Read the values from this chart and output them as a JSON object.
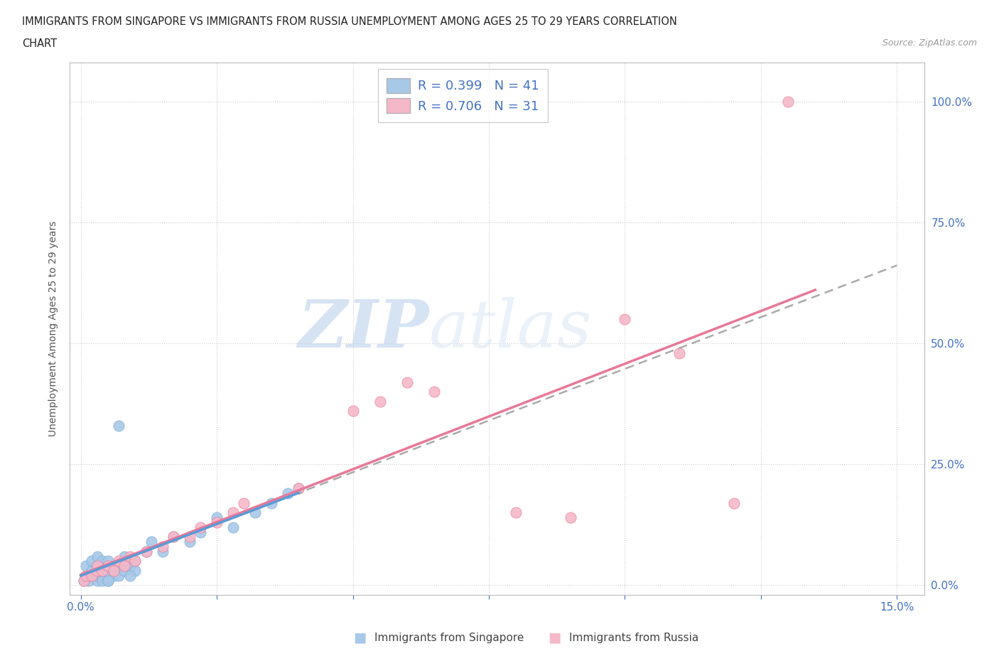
{
  "title_line1": "IMMIGRANTS FROM SINGAPORE VS IMMIGRANTS FROM RUSSIA UNEMPLOYMENT AMONG AGES 25 TO 29 YEARS CORRELATION",
  "title_line2": "CHART",
  "source": "Source: ZipAtlas.com",
  "ylabel": "Unemployment Among Ages 25 to 29 years",
  "xlim": [
    -0.002,
    0.155
  ],
  "ylim": [
    -0.02,
    1.08
  ],
  "xticks": [
    0.0,
    0.025,
    0.05,
    0.075,
    0.1,
    0.125,
    0.15
  ],
  "xticklabels": [
    "0.0%",
    "",
    "",
    "",
    "",
    "",
    "15.0%"
  ],
  "yticks": [
    0.0,
    0.25,
    0.5,
    0.75,
    1.0
  ],
  "yticklabels": [
    "0.0%",
    "25.0%",
    "50.0%",
    "75.0%",
    "100.0%"
  ],
  "singapore_color": "#a8c8e8",
  "singapore_edge_color": "#7aadd4",
  "russia_color": "#f5b8c8",
  "russia_edge_color": "#e87898",
  "singapore_line_color": "#5b9bd5",
  "russia_line_color": "#e87898",
  "legend_label_singapore": "R = 0.399   N = 41",
  "legend_label_russia": "R = 0.706   N = 31",
  "bottom_legend_singapore": "Immigrants from Singapore",
  "bottom_legend_russia": "Immigrants from Russia",
  "watermark_ZIP": "ZIP",
  "watermark_atlas": "atlas",
  "background_color": "#ffffff",
  "grid_color": "#cccccc",
  "tick_color": "#4472c4",
  "sg_x": [
    0.0005,
    0.001,
    0.001,
    0.0015,
    0.002,
    0.002,
    0.002,
    0.003,
    0.003,
    0.003,
    0.003,
    0.004,
    0.004,
    0.004,
    0.005,
    0.005,
    0.005,
    0.006,
    0.006,
    0.007,
    0.007,
    0.007,
    0.008,
    0.008,
    0.009,
    0.01,
    0.01,
    0.012,
    0.013,
    0.015,
    0.017,
    0.02,
    0.022,
    0.025,
    0.028,
    0.032,
    0.035,
    0.038,
    0.04,
    0.005,
    0.009
  ],
  "sg_y": [
    0.01,
    0.02,
    0.04,
    0.01,
    0.02,
    0.03,
    0.05,
    0.01,
    0.02,
    0.04,
    0.06,
    0.01,
    0.03,
    0.05,
    0.01,
    0.03,
    0.05,
    0.02,
    0.04,
    0.02,
    0.04,
    0.33,
    0.03,
    0.06,
    0.04,
    0.03,
    0.05,
    0.07,
    0.09,
    0.07,
    0.1,
    0.09,
    0.11,
    0.14,
    0.12,
    0.15,
    0.17,
    0.19,
    0.2,
    0.01,
    0.02
  ],
  "rs_x": [
    0.0005,
    0.001,
    0.002,
    0.003,
    0.003,
    0.004,
    0.005,
    0.006,
    0.007,
    0.008,
    0.009,
    0.01,
    0.012,
    0.015,
    0.017,
    0.02,
    0.022,
    0.025,
    0.028,
    0.03,
    0.04,
    0.05,
    0.055,
    0.06,
    0.065,
    0.08,
    0.09,
    0.1,
    0.11,
    0.12,
    0.13
  ],
  "rs_y": [
    0.01,
    0.02,
    0.02,
    0.03,
    0.04,
    0.03,
    0.04,
    0.03,
    0.05,
    0.04,
    0.06,
    0.05,
    0.07,
    0.08,
    0.1,
    0.1,
    0.12,
    0.13,
    0.15,
    0.17,
    0.2,
    0.36,
    0.38,
    0.42,
    0.4,
    0.15,
    0.14,
    0.55,
    0.48,
    0.17,
    1.0
  ],
  "sg_trend_x": [
    0.0,
    0.15
  ],
  "sg_trend_y": [
    0.02,
    0.68
  ],
  "rs_trend_x": [
    0.0,
    0.135
  ],
  "rs_trend_y": [
    0.01,
    0.62
  ]
}
